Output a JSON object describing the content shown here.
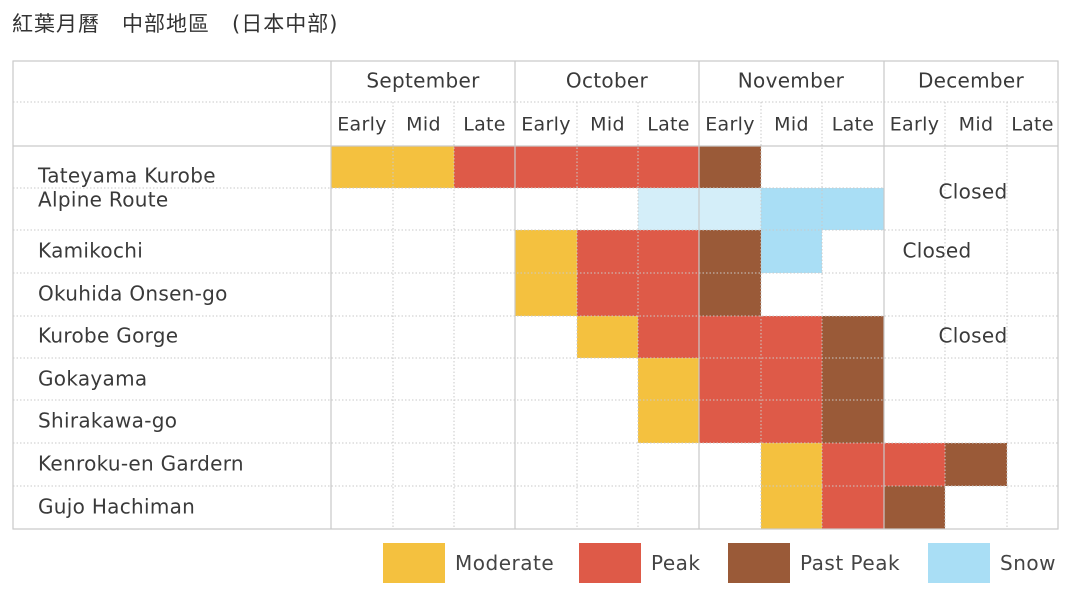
{
  "title": "紅葉月曆　中部地區　(日本中部)",
  "colors": {
    "moderate": "#f4c13f",
    "peak": "#de5a48",
    "past": "#9a5a38",
    "snow_light": "#d4eef9",
    "snow": "#a9def5"
  },
  "months": [
    "September",
    "October",
    "November",
    "December"
  ],
  "periods": [
    "Early",
    "Mid",
    "Late"
  ],
  "legend": [
    {
      "key": "moderate",
      "label": "Moderate"
    },
    {
      "key": "peak",
      "label": "Peak"
    },
    {
      "key": "past",
      "label": "Past Peak"
    },
    {
      "key": "snow",
      "label": "Snow"
    }
  ],
  "chart_data": {
    "type": "table",
    "columns": [
      "September Early",
      "September Mid",
      "September Late",
      "October Early",
      "October Mid",
      "October Late",
      "November Early",
      "November Mid",
      "November Late",
      "December Early",
      "December Mid",
      "December Late"
    ],
    "rows": [
      {
        "name": "Tateyama Kurobe Alpine Route",
        "foliage": [
          "moderate",
          "moderate",
          "peak",
          "peak",
          "peak",
          "peak",
          "past",
          "",
          "",
          "",
          "",
          ""
        ],
        "snow": [
          "",
          "",
          "",
          "",
          "",
          "snow_light",
          "snow_light",
          "snow",
          "snow",
          "",
          "",
          ""
        ],
        "closed_label": "Closed"
      },
      {
        "name": "Kamikochi",
        "foliage": [
          "",
          "",
          "",
          "moderate",
          "peak",
          "peak",
          "past",
          "snow",
          "",
          "",
          "",
          ""
        ],
        "closed_label": "Closed"
      },
      {
        "name": "Okuhida Onsen-go",
        "foliage": [
          "",
          "",
          "",
          "moderate",
          "peak",
          "peak",
          "past",
          "",
          "",
          "",
          "",
          ""
        ]
      },
      {
        "name": "Kurobe Gorge",
        "foliage": [
          "",
          "",
          "",
          "",
          "moderate",
          "peak",
          "peak",
          "peak",
          "past",
          "",
          "",
          ""
        ],
        "closed_label": "Closed"
      },
      {
        "name": "Gokayama",
        "foliage": [
          "",
          "",
          "",
          "",
          "",
          "moderate",
          "peak",
          "peak",
          "past",
          "",
          "",
          ""
        ]
      },
      {
        "name": "Shirakawa-go",
        "foliage": [
          "",
          "",
          "",
          "",
          "",
          "moderate",
          "peak",
          "peak",
          "past",
          "",
          "",
          ""
        ]
      },
      {
        "name": "Kenroku-en Gardern",
        "foliage": [
          "",
          "",
          "",
          "",
          "",
          "",
          "",
          "moderate",
          "peak",
          "peak",
          "past",
          ""
        ]
      },
      {
        "name": "Gujo Hachiman",
        "foliage": [
          "",
          "",
          "",
          "",
          "",
          "",
          "",
          "moderate",
          "peak",
          "past",
          "",
          ""
        ]
      }
    ]
  }
}
